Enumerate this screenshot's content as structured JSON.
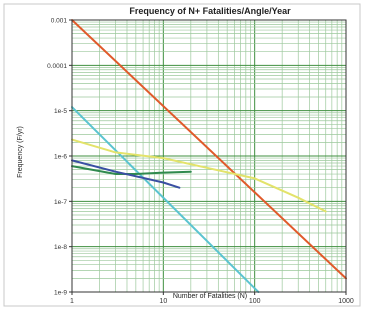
{
  "chart_data": {
    "type": "line",
    "title": "Frequency of N+ Fatalities/Angle/Year",
    "xlabel": "Number of Fatalities (N)",
    "ylabel": "Frequency (F/yr)",
    "x_scale": "log",
    "y_scale": "log",
    "xlim": [
      1,
      1000
    ],
    "ylim": [
      1e-09,
      0.001
    ],
    "x_ticks": [
      1,
      10,
      100,
      1000
    ],
    "x_tick_labels": [
      "1",
      "10",
      "100",
      "1000"
    ],
    "y_ticks": [
      0.001,
      0.0001,
      1e-05,
      1e-06,
      1e-07,
      1e-08,
      1e-09
    ],
    "y_tick_labels": [
      "0.001",
      "0.0001",
      "1e-5",
      "1e-6",
      "1e-7",
      "1e-8",
      "1e-9"
    ],
    "grid": true,
    "series": [
      {
        "color": "#e05a2b",
        "x": [
          1,
          1000
        ],
        "y": [
          0.001,
          2e-09
        ]
      },
      {
        "color": "#5bc4d0",
        "x": [
          1,
          110
        ],
        "y": [
          1.2e-05,
          1e-09
        ]
      },
      {
        "color": "#e3e36a",
        "x": [
          1,
          3,
          10,
          30,
          100,
          300,
          600
        ],
        "y": [
          2.3e-06,
          1.2e-06,
          9e-07,
          5.5e-07,
          3.2e-07,
          1.2e-07,
          6e-08
        ]
      },
      {
        "color": "#2f8a4e",
        "x": [
          1,
          3,
          5,
          10,
          20
        ],
        "y": [
          6e-07,
          4e-07,
          4e-07,
          4.3e-07,
          4.5e-07
        ]
      },
      {
        "color": "#3a4fa3",
        "x": [
          1,
          3,
          10,
          15
        ],
        "y": [
          8e-07,
          4.5e-07,
          2.6e-07,
          2e-07
        ]
      }
    ]
  }
}
